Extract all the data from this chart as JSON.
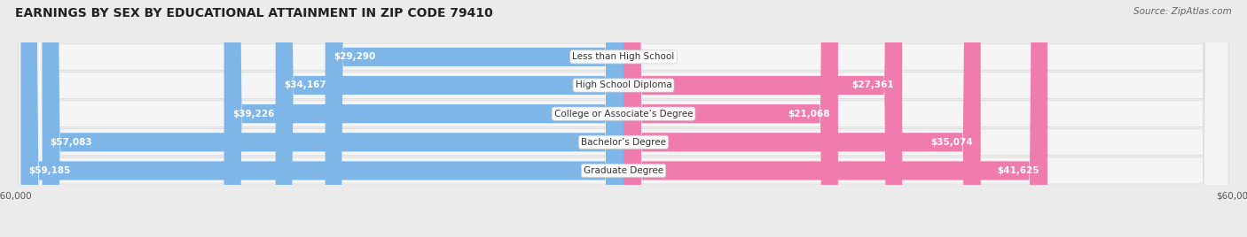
{
  "title": "EARNINGS BY SEX BY EDUCATIONAL ATTAINMENT IN ZIP CODE 79410",
  "source": "Source: ZipAtlas.com",
  "categories": [
    "Less than High School",
    "High School Diploma",
    "College or Associate’s Degree",
    "Bachelor’s Degree",
    "Graduate Degree"
  ],
  "male_values": [
    29290,
    34167,
    39226,
    57083,
    59185
  ],
  "female_values": [
    0,
    27361,
    21068,
    35074,
    41625
  ],
  "male_color": "#7EB6E8",
  "female_color": "#F07BAD",
  "bg_color": "#EBEBEB",
  "row_bg": "#F5F5F5",
  "row_border": "#DDDDDD",
  "x_max": 60000,
  "title_fontsize": 10,
  "source_fontsize": 7.5,
  "label_fontsize": 7.5,
  "tick_fontsize": 7.5,
  "legend_fontsize": 8,
  "bar_height": 0.65
}
